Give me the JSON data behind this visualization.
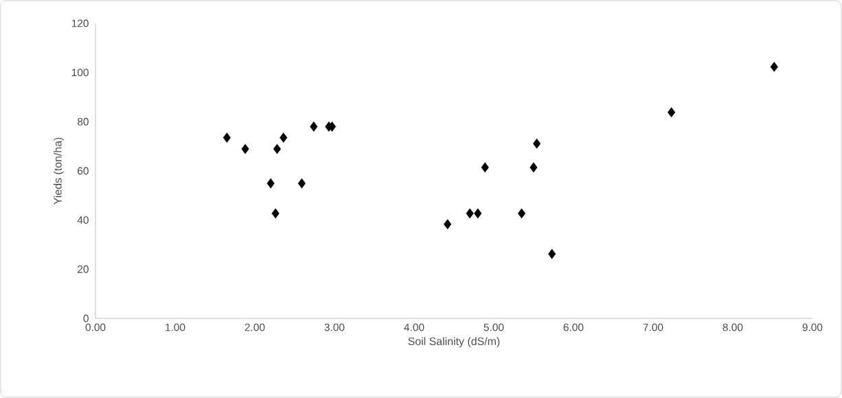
{
  "chart_data": {
    "type": "scatter",
    "xlabel": "Soil Salinity (dS/m)",
    "ylabel": "Yieds (ton/ha)",
    "x": [
      1.65,
      1.88,
      2.2,
      2.26,
      2.28,
      2.36,
      2.59,
      2.74,
      2.93,
      2.97,
      4.42,
      4.7,
      4.8,
      4.89,
      5.35,
      5.5,
      5.54,
      5.73,
      7.23,
      8.52
    ],
    "series": [
      {
        "color": "#000000",
        "values": [
          73.5,
          68.9,
          54.9,
          42.7,
          68.9,
          73.5,
          54.9,
          78.0,
          78.0,
          78.0,
          38.3,
          42.7,
          42.7,
          61.4,
          42.7,
          61.4,
          71.1,
          26.2,
          83.8,
          102.3
        ]
      }
    ],
    "xlim": [
      0,
      9
    ],
    "ylim": [
      0,
      120
    ],
    "xticks": [
      {
        "value": 0,
        "label": "0.00"
      },
      {
        "value": 1,
        "label": "1.00"
      },
      {
        "value": 2,
        "label": "2.00"
      },
      {
        "value": 3,
        "label": "3.00"
      },
      {
        "value": 4,
        "label": "4.00"
      },
      {
        "value": 5,
        "label": "5.00"
      },
      {
        "value": 6,
        "label": "6.00"
      },
      {
        "value": 7,
        "label": "7.00"
      },
      {
        "value": 8,
        "label": "8.00"
      },
      {
        "value": 9,
        "label": "9.00"
      }
    ],
    "yticks": [
      0,
      20,
      40,
      60,
      80,
      100,
      120
    ],
    "marker": "diamond"
  }
}
